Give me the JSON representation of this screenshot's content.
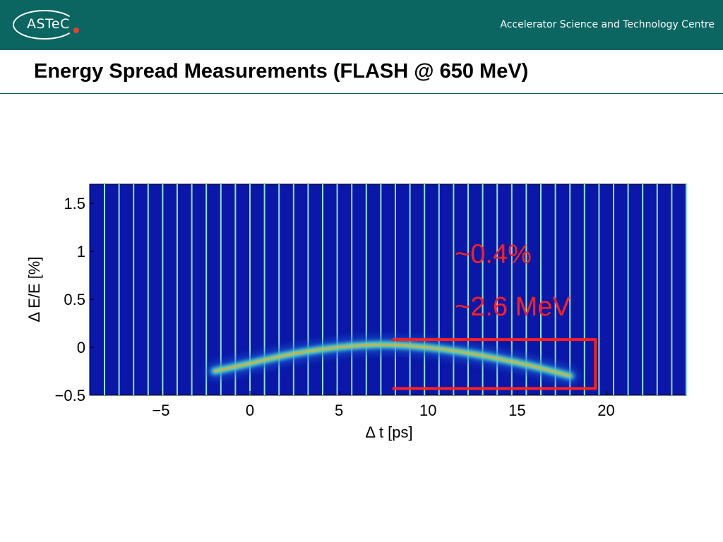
{
  "header": {
    "logo_text": "ASTeC",
    "org_name": "Accelerator Science and Technology Centre",
    "brand_color": "#0b6560",
    "logo_dot_color": "#e2452f"
  },
  "slide": {
    "title": "Energy Spread Measurements (FLASH @ 650 MeV)"
  },
  "chart_data": {
    "type": "heatmap",
    "xlabel": "Δ t [ps]",
    "ylabel": "Δ E/E [%]",
    "xlim": [
      -9,
      24.5
    ],
    "ylim": [
      -0.5,
      1.7
    ],
    "xticks": [
      -5,
      0,
      5,
      10,
      15,
      20
    ],
    "yticks": [
      1.5,
      1,
      0.5,
      0,
      -0.5
    ],
    "tick_labels_x": [
      "−5",
      "0",
      "5",
      "10",
      "15",
      "20"
    ],
    "tick_labels_y": [
      "1.5",
      "1",
      "0.5",
      "0",
      "−0.5"
    ],
    "background_color": "#0a17a8",
    "stripe_color": "#8fe3c8",
    "grid": false,
    "trace": {
      "x": [
        -2,
        0,
        2,
        4,
        6,
        8,
        10,
        12,
        14,
        16,
        18
      ],
      "y": [
        -0.25,
        -0.17,
        -0.08,
        -0.02,
        0.02,
        0.03,
        0.0,
        -0.05,
        -0.12,
        -0.2,
        -0.3
      ]
    },
    "annotations": [
      {
        "text": "~0.4%",
        "x": 11.5,
        "y": 0.88,
        "color": "#ff2020"
      },
      {
        "text": "~2.6 MeV",
        "x": 11.5,
        "y": 0.33,
        "color": "#ff2020"
      }
    ],
    "bracket": {
      "x_start": 8,
      "x_end": 19.4,
      "y_top": 0.08,
      "y_bottom": -0.43,
      "color": "#ff2020"
    }
  }
}
